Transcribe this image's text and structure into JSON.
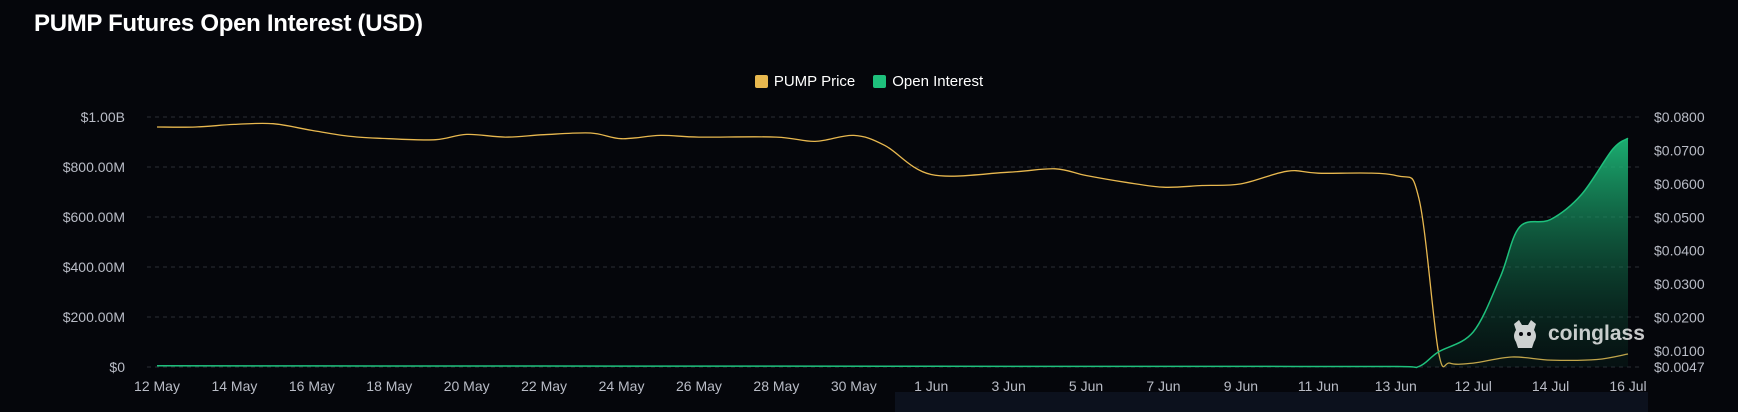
{
  "title": "PUMP Futures Open Interest (USD)",
  "legend": [
    {
      "label": "PUMP Price",
      "color": "#e8b84f"
    },
    {
      "label": "Open Interest",
      "color": "#1ec07c"
    }
  ],
  "watermark": {
    "text": "coinglass",
    "icon": "coinglass-logo-icon"
  },
  "chart_data": {
    "type": "area",
    "x": [
      "12 May",
      "14 May",
      "16 May",
      "18 May",
      "20 May",
      "22 May",
      "24 May",
      "26 May",
      "28 May",
      "30 May",
      "1 Jun",
      "3 Jun",
      "5 Jun",
      "7 Jun",
      "9 Jun",
      "11 Jun",
      "13 Jun",
      "12 Jul",
      "14 Jul",
      "16 Jul"
    ],
    "x_ticks": [
      "12 May",
      "14 May",
      "16 May",
      "18 May",
      "20 May",
      "22 May",
      "24 May",
      "26 May",
      "28 May",
      "30 May",
      "1 Jun",
      "3 Jun",
      "5 Jun",
      "7 Jun",
      "9 Jun",
      "11 Jun",
      "13 Jun",
      "12 Jul",
      "14 Jul",
      "16 Jul"
    ],
    "y_left": {
      "ticks": [
        "$0",
        "$200.00M",
        "$400.00M",
        "$600.00M",
        "$800.00M",
        "$1.00B"
      ],
      "range": [
        0,
        1000000000
      ]
    },
    "y_right": {
      "ticks": [
        "$0.0047",
        "$0.0100",
        "$0.0200",
        "$0.0300",
        "$0.0400",
        "$0.0500",
        "$0.0600",
        "$0.0700",
        "$0.0800"
      ],
      "range": [
        0.0047,
        0.08
      ]
    },
    "grid": true,
    "legend_position": "top-center",
    "series": [
      {
        "name": "PUMP Price",
        "axis": "right",
        "color": "#e8b84f",
        "type": "line",
        "points": [
          [
            0,
            0.077
          ],
          [
            0.5,
            0.077
          ],
          [
            1,
            0.0778
          ],
          [
            1.5,
            0.078
          ],
          [
            2,
            0.076
          ],
          [
            2.5,
            0.0742
          ],
          [
            3,
            0.0735
          ],
          [
            3.6,
            0.0732
          ],
          [
            4,
            0.0748
          ],
          [
            4.5,
            0.074
          ],
          [
            5,
            0.0747
          ],
          [
            5.6,
            0.0752
          ],
          [
            6,
            0.0735
          ],
          [
            6.5,
            0.0745
          ],
          [
            7,
            0.074
          ],
          [
            8,
            0.074
          ],
          [
            8.5,
            0.0727
          ],
          [
            9,
            0.0745
          ],
          [
            9.4,
            0.0715
          ],
          [
            10,
            0.0628
          ],
          [
            11,
            0.0635
          ],
          [
            11.6,
            0.0645
          ],
          [
            12,
            0.0625
          ],
          [
            12.5,
            0.0605
          ],
          [
            13,
            0.059
          ],
          [
            13.5,
            0.0595
          ],
          [
            14,
            0.06
          ],
          [
            14.6,
            0.0638
          ],
          [
            15,
            0.0632
          ],
          [
            16,
            0.0625
          ],
          [
            16.3,
            0.0555
          ],
          [
            16.55,
            0.01
          ],
          [
            16.7,
            0.006
          ],
          [
            17,
            0.006
          ],
          [
            17.5,
            0.008
          ],
          [
            18,
            0.007
          ],
          [
            18.6,
            0.0072
          ],
          [
            19,
            0.009
          ]
        ]
      },
      {
        "name": "Open Interest",
        "axis": "left",
        "color": "#1ec07c",
        "type": "area",
        "points": [
          [
            0,
            5000000
          ],
          [
            2,
            4500000
          ],
          [
            4,
            4000000
          ],
          [
            6,
            3500000
          ],
          [
            8,
            3500000
          ],
          [
            10,
            3000000
          ],
          [
            12,
            2500000
          ],
          [
            14,
            2200000
          ],
          [
            16,
            2000000
          ],
          [
            16.3,
            2500000
          ],
          [
            16.55,
            60000000
          ],
          [
            17,
            140000000
          ],
          [
            17.35,
            360000000
          ],
          [
            17.6,
            560000000
          ],
          [
            18,
            590000000
          ],
          [
            18.4,
            690000000
          ],
          [
            18.8,
            870000000
          ],
          [
            19,
            915000000
          ]
        ]
      }
    ]
  }
}
